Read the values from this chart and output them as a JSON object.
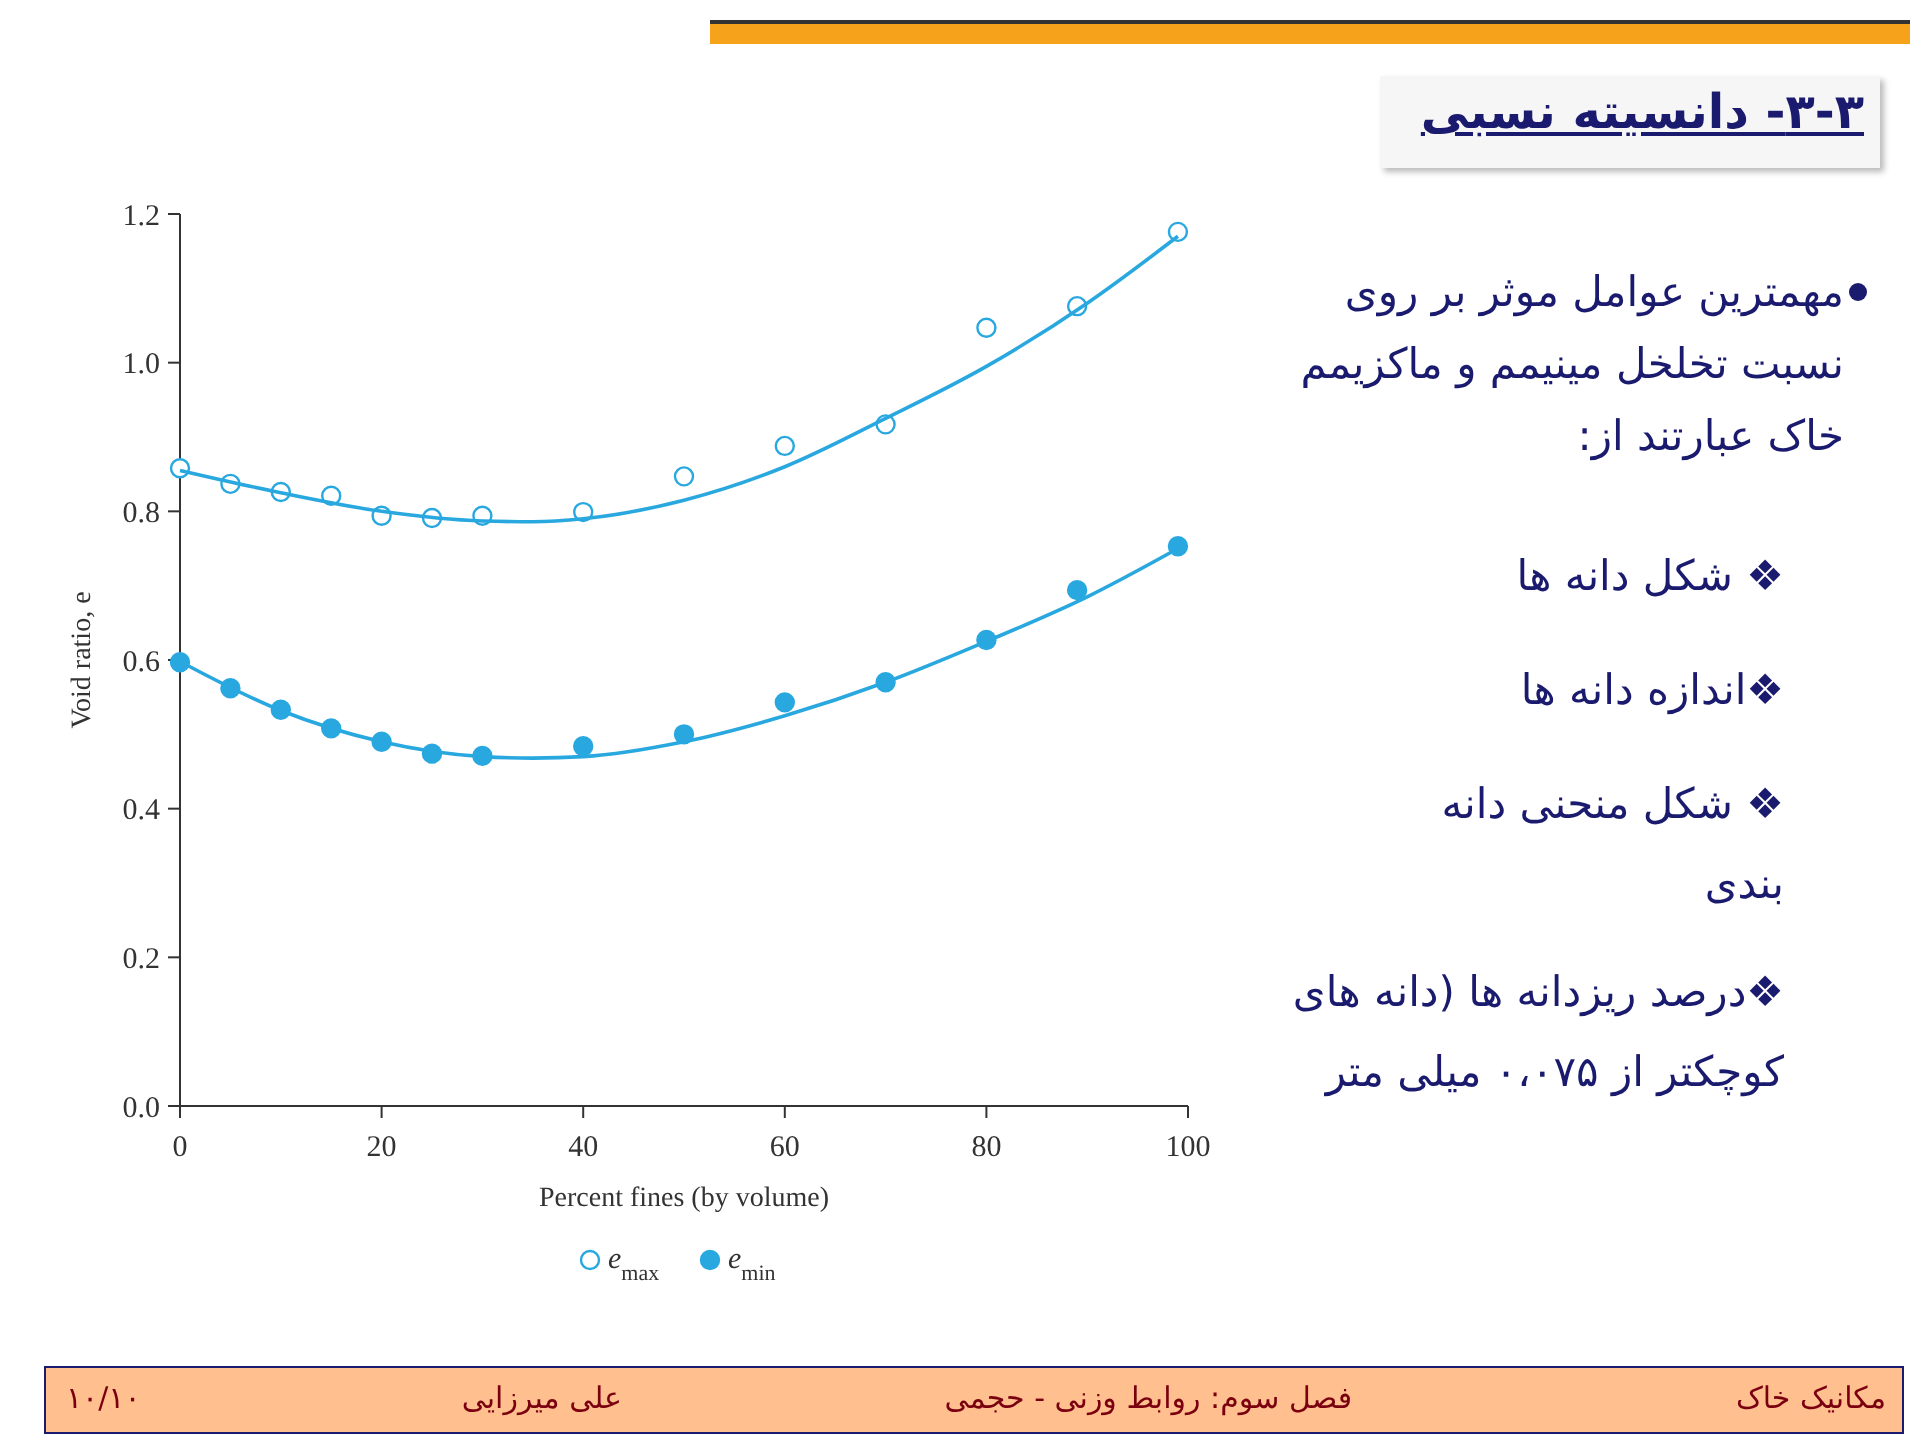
{
  "chart_data": {
    "type": "scatter",
    "title": "۳-۳- دانسیته نسبی",
    "xlabel": "Percent fines (by volume)",
    "ylabel": "Void ratio, e",
    "xlim": [
      0,
      100
    ],
    "ylim": [
      0,
      1.2
    ],
    "xticks": [
      0,
      20,
      40,
      60,
      80,
      100
    ],
    "yticks": [
      {
        "value": 0,
        "label": "0.0"
      },
      0.2,
      0.4,
      0.6,
      0.8,
      {
        "value": 1,
        "label": "1.0"
      },
      1.2
    ],
    "x": [
      0,
      5,
      10,
      15,
      20,
      25,
      30,
      40,
      50,
      60,
      70,
      80,
      89,
      99
    ],
    "series": [
      {
        "name": "e$_{max}$",
        "color": "#29a8e0",
        "values": [
          0.858,
          0.837,
          0.826,
          0.821,
          0.794,
          0.791,
          0.794,
          0.799,
          0.847,
          0.888,
          0.917,
          1.047,
          1.076,
          1.176
        ]
      },
      {
        "name": "e$_{min}$",
        "color": "#29a8e0",
        "values": [
          0.597,
          0.562,
          0.533,
          0.508,
          0.49,
          0.474,
          0.471,
          0.484,
          0.5,
          0.543,
          0.57,
          0.627,
          0.694,
          0.753
        ]
      },
      {
        "type": "line",
        "marker": "none",
        "color": "#29a8e0",
        "x": [
          0,
          10,
          20,
          30,
          35,
          40,
          50,
          60,
          70,
          80,
          90,
          99
        ],
        "values": [
          0.855,
          0.825,
          0.8,
          0.787,
          0.786,
          0.79,
          0.815,
          0.86,
          0.925,
          0.995,
          1.08,
          1.17
        ]
      },
      {
        "type": "line",
        "marker": "none",
        "color": "#29a8e0",
        "x": [
          0,
          10,
          20,
          30,
          35,
          40,
          50,
          60,
          70,
          80,
          90,
          99
        ],
        "values": [
          0.598,
          0.532,
          0.49,
          0.47,
          0.468,
          0.47,
          0.49,
          0.525,
          0.57,
          0.625,
          0.685,
          0.75
        ]
      }
    ],
    "marker": "circle",
    "legend": "bottom",
    "grid": false,
    "annotations": [
      "مهمترین عوامل موثر بر روی نسبت تخلخل مینیمم و ماکزیمم خاک عبارتند از:",
      "❖ شکل دانه ها",
      "❖اندازه دانه ها",
      "❖ شکل منحنی دانه بندی",
      "❖درصد ریزدانه ها (دانه های کوچکتر از ۰،۰۷۵ میلی متر",
      "مکانیک خاک",
      "فصل سوم: روابط وزنی - حجمی",
      "علی میرزایی",
      "۱۰/۱۰"
    ]
  }
}
